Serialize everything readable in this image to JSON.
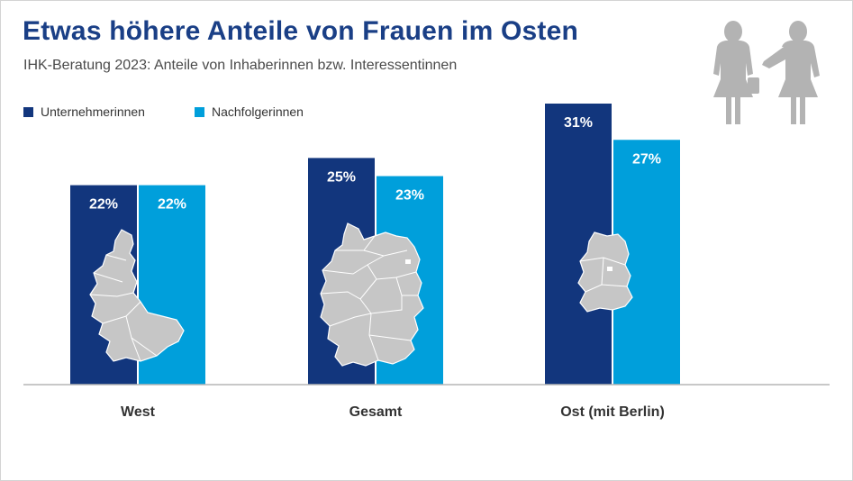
{
  "chart_data": {
    "type": "bar",
    "title": "Etwas höhere Anteile von Frauen im Osten",
    "subtitle": "IHK-Beratung 2023: Anteile von Inhaberinnen bzw. Interessentinnen",
    "categories": [
      "West",
      "Gesamt",
      "Ost (mit Berlin)"
    ],
    "series": [
      {
        "name": "Unternehmerinnen",
        "color": "#12367d",
        "values": [
          22,
          25,
          31
        ],
        "labels": [
          "22%",
          "25%",
          "31%"
        ]
      },
      {
        "name": "Nachfolgerinnen",
        "color": "#009fdb",
        "values": [
          22,
          23,
          27
        ],
        "labels": [
          "22%",
          "23%",
          "27%"
        ]
      }
    ],
    "ylim": [
      0,
      31
    ],
    "xlabel": "",
    "ylabel": "",
    "grid": false,
    "legend": "top-left"
  },
  "colors": {
    "title": "#1a3f86",
    "map": "#c6c6c6",
    "icon": "#b3b3b3",
    "baseline": "#b5b5b5"
  },
  "icons": [
    "businesswoman-icon",
    "businesswoman-pointing-icon",
    "germany-map-west-icon",
    "germany-map-full-icon",
    "germany-map-east-icon"
  ]
}
